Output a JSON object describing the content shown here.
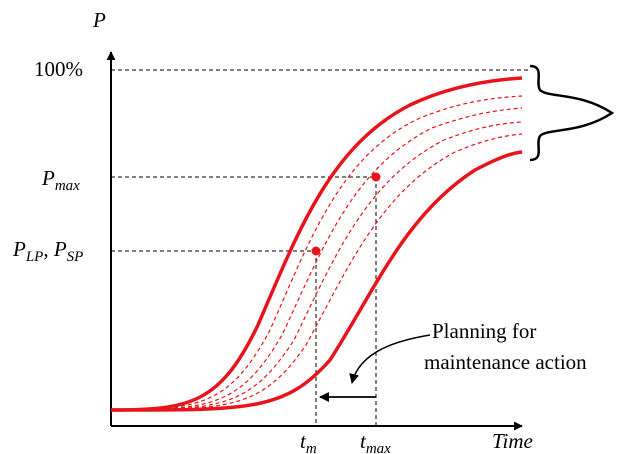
{
  "axes": {
    "y_label": "P",
    "x_label": "Time",
    "y_tick_top": "100%",
    "y_tick_max": {
      "base": "P",
      "sub": "max"
    },
    "y_tick_lp_sp": {
      "p1": "P",
      "sub1": "LP",
      "sep": ", ",
      "p2": "P",
      "sub2": "SP"
    },
    "x_tick_m": {
      "base": "t",
      "sub": "m"
    },
    "x_tick_max": {
      "base": "t",
      "sub": "max"
    }
  },
  "annotation": {
    "line1": "Planning for",
    "line2": "maintenance action"
  },
  "colors": {
    "curve": "#e8141b",
    "axis": "#000000",
    "guide": "#000000"
  }
}
